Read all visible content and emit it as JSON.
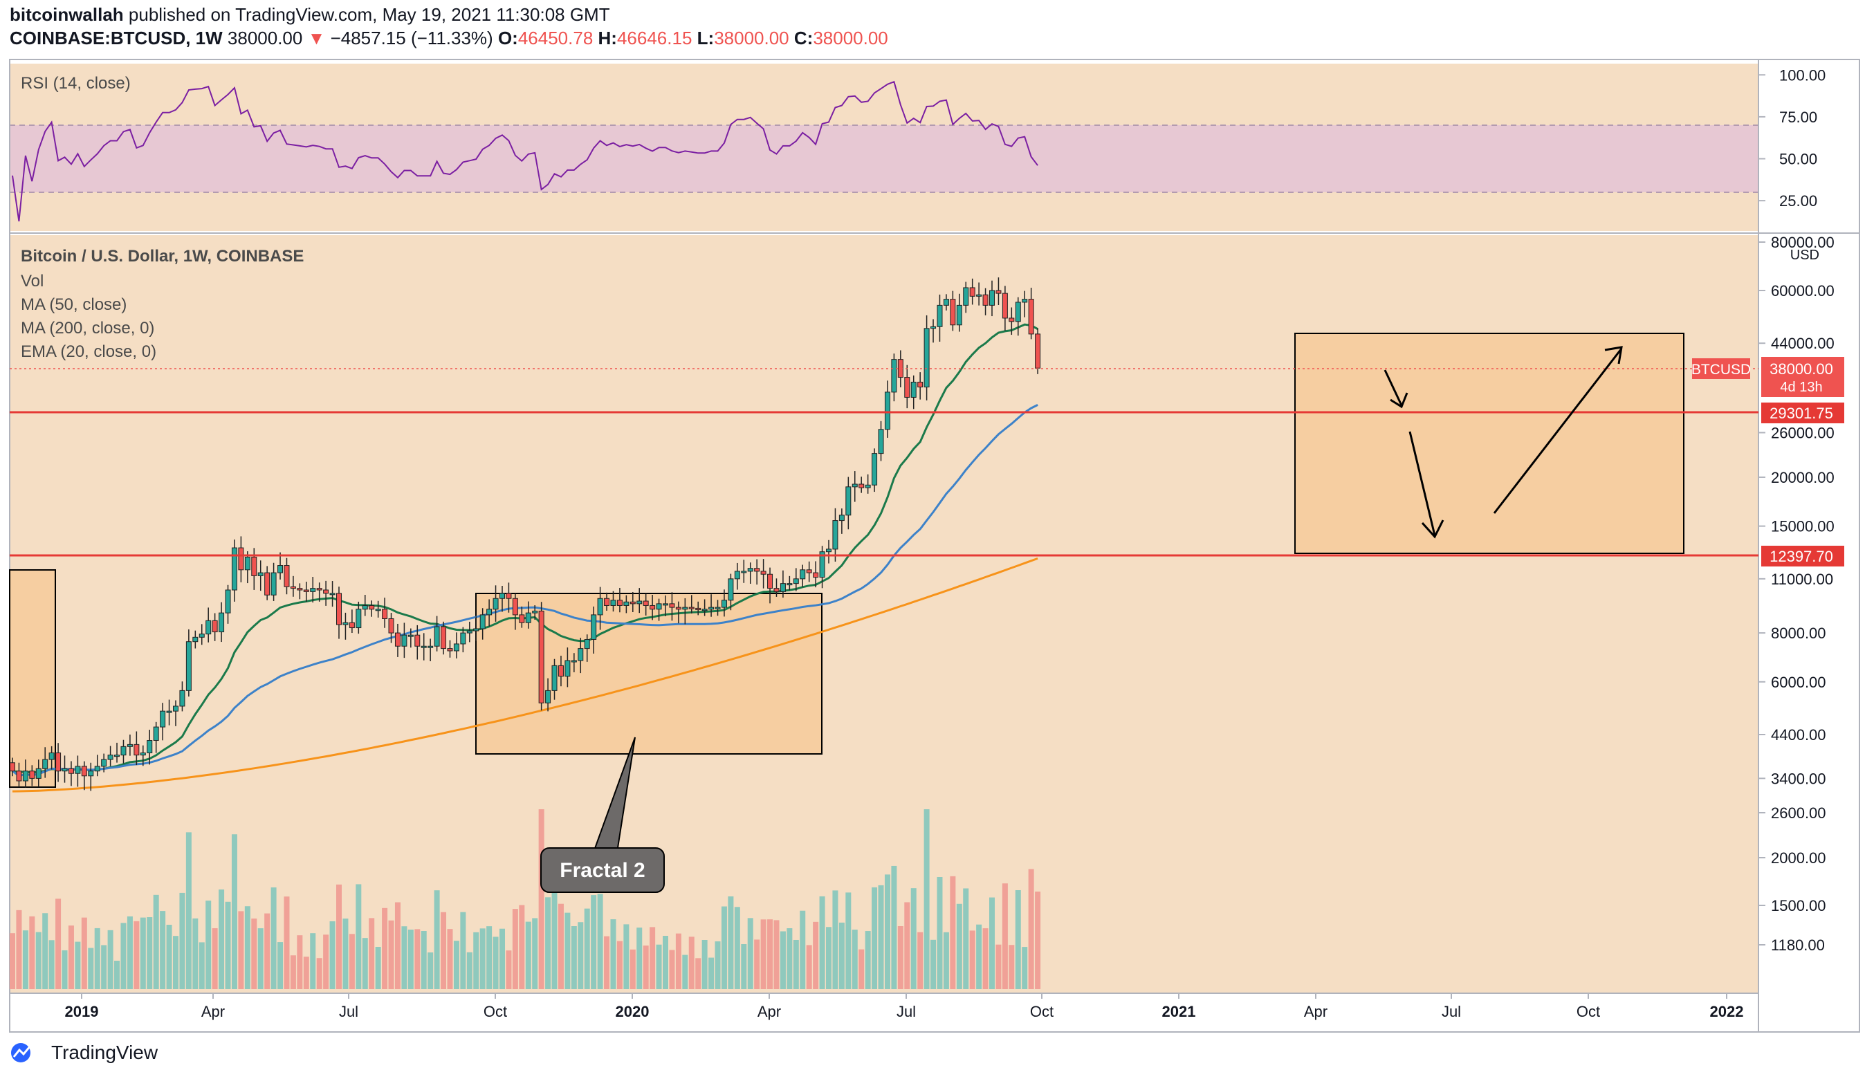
{
  "header": {
    "author": "bitcoinwallah",
    "published_text": "published on TradingView.com, May 19, 2021 11:30:08 GMT",
    "symbol": "COINBASE:BTCUSD, 1W",
    "last": "38000.00",
    "change": "−4857.15 (−11.33%)",
    "open_label": "O:",
    "open": "46450.78",
    "high_label": "H:",
    "high": "46646.15",
    "low_label": "L:",
    "low": "38000.00",
    "close_label": "C:",
    "close": "38000.00"
  },
  "rsi_panel": {
    "title": "RSI (14, close)",
    "ticks": [
      "100.00",
      "75.00",
      "50.00",
      "25.00"
    ]
  },
  "price_panel": {
    "title": "Bitcoin / U.S. Dollar, 1W, COINBASE",
    "indicators": [
      "Vol",
      "MA (50, close)",
      "MA (200, close, 0)",
      "EMA (20, close, 0)"
    ],
    "currency": "USD",
    "price_ticks": [
      "80000.00",
      "60000.00",
      "44000.00",
      "26000.00",
      "20000.00",
      "15000.00",
      "11000.00",
      "8000.00",
      "6000.00",
      "4400.00",
      "3400.00",
      "2600.00",
      "2000.00",
      "1500.00",
      "1180.00"
    ],
    "last_label": {
      "symbol": "BTCUSD",
      "value": "38000.00",
      "countdown": "4d 13h"
    },
    "level_labels": [
      "29301.75",
      "12397.70"
    ],
    "annotation": "Fractal 2"
  },
  "x_axis": {
    "labels": [
      "2019",
      "Apr",
      "Jul",
      "Oct",
      "2020",
      "Apr",
      "Jul",
      "Oct",
      "2021",
      "Apr",
      "Jul",
      "Oct",
      "2022"
    ]
  },
  "footer": {
    "brand": "TradingView"
  },
  "colors": {
    "background": "#f5dec4",
    "up": "#26a69a",
    "down": "#ef5350",
    "rsi": "#7b1fa2",
    "ema20": "#1b7a4b",
    "ma50": "#3d82c9",
    "ma200": "#f7931a",
    "level": "#e53935"
  },
  "chart_data": {
    "type": "candlestick",
    "title": "Bitcoin / U.S. Dollar, 1W, COINBASE",
    "ylabel": "USD",
    "y_scale": "log",
    "ylim": [
      1000,
      80000
    ],
    "candles_close": [
      3550,
      3350,
      3550,
      3400,
      3600,
      3800,
      3950,
      3550,
      3600,
      3500,
      3650,
      3450,
      3550,
      3650,
      3800,
      3900,
      3900,
      4100,
      4150,
      3900,
      3950,
      4250,
      4600,
      5050,
      5050,
      5200,
      5700,
      7600,
      7800,
      7950,
      8600,
      8050,
      9000,
      10300,
      13200,
      11600,
      12500,
      11200,
      11400,
      10000,
      11400,
      11900,
      10500,
      10400,
      10300,
      10200,
      10400,
      10300,
      10100,
      10100,
      8400,
      8500,
      8250,
      9200,
      9400,
      9200,
      9200,
      8700,
      8000,
      7400,
      7900,
      7900,
      7400,
      7400,
      7400,
      8300,
      7300,
      7200,
      7500,
      8000,
      8100,
      8200,
      8900,
      9200,
      9800,
      10100,
      9800,
      8900,
      8500,
      9000,
      9100,
      5300,
      5700,
      6600,
      6200,
      6800,
      6800,
      7300,
      7700,
      8900,
      9800,
      9400,
      9700,
      9400,
      9600,
      9500,
      9650,
      9400,
      9200,
      9500,
      9500,
      9300,
      9200,
      9300,
      9250,
      9200,
      9200,
      9300,
      9300,
      9700,
      11000,
      11500,
      11500,
      11700,
      11500,
      11300,
      10400,
      10200,
      10700,
      10700,
      11000,
      11600,
      11400,
      11100,
      12900,
      13100,
      15500,
      16000,
      18900,
      19200,
      18800,
      19100,
      23000,
      26500,
      33000,
      40000,
      36000,
      32000,
      35000,
      34000,
      48000,
      48500,
      55000,
      57000,
      49000,
      55000,
      61000,
      58000,
      58500,
      55000,
      60000,
      59000,
      51000,
      50000,
      56000,
      57000,
      46450,
      38000
    ],
    "ema20_end": 46000,
    "ma50_end": 28000,
    "ma200_end": 12400,
    "rsi_last": 46,
    "rsi_band": [
      30,
      70
    ],
    "horizontal_levels": [
      29301.75,
      12397.7
    ],
    "volume_ticks": [
      "2600.00",
      "2000.00",
      "1500.00",
      "1180.00"
    ]
  }
}
